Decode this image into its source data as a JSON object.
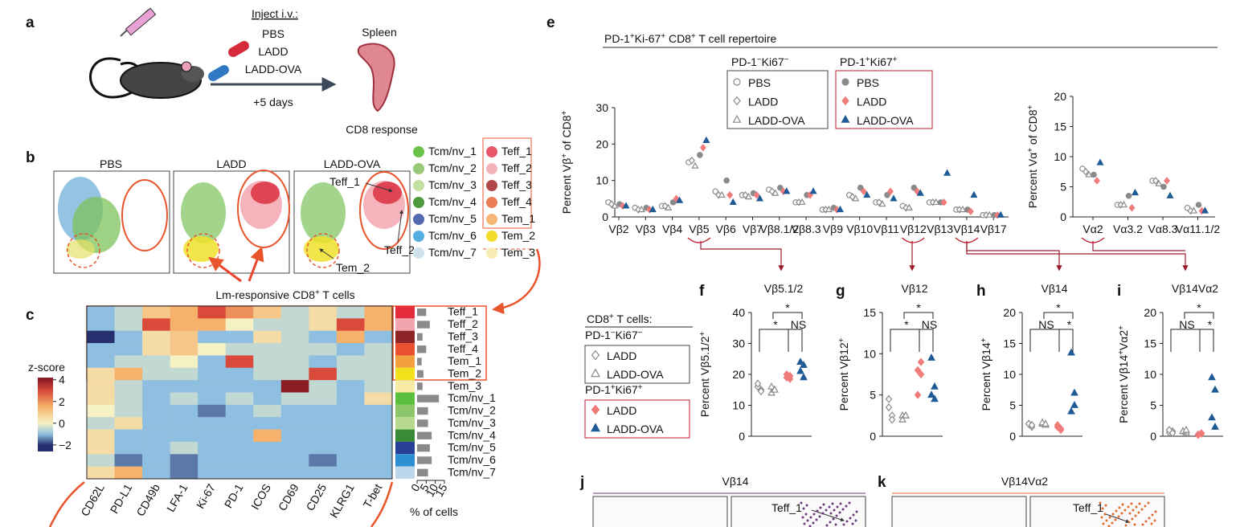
{
  "panel_a": {
    "letter": "a",
    "inject": "Inject i.v.:",
    "groups": [
      "PBS",
      "LADD",
      "LADD-OVA"
    ],
    "group_colors": [
      "#8a8a8a",
      "#d42a3a",
      "#2f78c4"
    ],
    "duration": "+5 days",
    "organ": "Spleen",
    "readout": "CD8 response"
  },
  "panel_b": {
    "letter": "b",
    "titles": [
      "PBS",
      "LADD",
      "LADD-OVA"
    ],
    "annotations": [
      "Teff_1",
      "Teff_2",
      "Tem_2"
    ],
    "legend": [
      {
        "name": "Tcm/nv_1",
        "color": "#6cc24a"
      },
      {
        "name": "Tcm/nv_2",
        "color": "#97c978"
      },
      {
        "name": "Tcm/nv_3",
        "color": "#c3e0a2"
      },
      {
        "name": "Tcm/nv_4",
        "color": "#4f9a3f"
      },
      {
        "name": "Tcm/nv_5",
        "color": "#5569b0"
      },
      {
        "name": "Tcm/nv_6",
        "color": "#56aee0"
      },
      {
        "name": "Tcm/nv_7",
        "color": "#cfe2ee"
      },
      {
        "name": "Teff_1",
        "color": "#e7586a"
      },
      {
        "name": "Teff_2",
        "color": "#f3b3ba"
      },
      {
        "name": "Teff_3",
        "color": "#b0474a"
      },
      {
        "name": "Teff_4",
        "color": "#ec7d57"
      },
      {
        "name": "Tem_1",
        "color": "#f6b676"
      },
      {
        "name": "Tem_2",
        "color": "#f1dc2c"
      },
      {
        "name": "Tem_3",
        "color": "#f7ecb4"
      }
    ],
    "callout": [
      "Lm-responsive CD8",
      "+",
      " T cells"
    ]
  },
  "panel_c": {
    "letter": "c",
    "colorbar_title": "z-score",
    "columns": [
      "CD62L",
      "PD-L1",
      "CD49b",
      "LFA-1",
      "Ki-67",
      "PD-1",
      "ICOS",
      "CD69",
      "CD25",
      "KLRG1",
      "T-bet"
    ],
    "highlight_columns": [
      4,
      5
    ],
    "highlight_color": "#d42a3a",
    "rows": [
      "Teff_1",
      "Teff_2",
      "Teff_3",
      "Teff_4",
      "Tem_1",
      "Tem_2",
      "Tem_3",
      "Tcm/nv_1",
      "Tcm/nv_2",
      "Tcm/nv_3",
      "Tcm/nv_4",
      "Tcm/nv_5",
      "Tcm/nv_6",
      "Tcm/nv_7"
    ],
    "row_colors": [
      "#e32b3c",
      "#f2a5ae",
      "#8f2526",
      "#e8502f",
      "#f4a03e",
      "#f2e21c",
      "#f6eaa5",
      "#5cbf3c",
      "#8cc56a",
      "#b6d98f",
      "#3a8a37",
      "#283f97",
      "#2d8fd2",
      "#bcd7ec"
    ],
    "values": [
      [
        -1,
        -0.5,
        1,
        1.5,
        3,
        2,
        1,
        -0.5,
        0.5,
        -0.5,
        1.5
      ],
      [
        -1,
        -0.5,
        3,
        1.5,
        1.5,
        0,
        -0.5,
        -0.5,
        0.5,
        3,
        1.5
      ],
      [
        -2.5,
        -1,
        0.5,
        1,
        -1,
        -1,
        0.5,
        -0.5,
        -1,
        1.5,
        -1
      ],
      [
        -1,
        -1,
        0.5,
        1,
        0,
        -0.5,
        -0.5,
        -0.5,
        -0.5,
        -1,
        -0.5
      ],
      [
        -1,
        -0.5,
        -0.5,
        0,
        -1,
        3,
        -0.5,
        -0.5,
        -1,
        -0.5,
        -0.5
      ],
      [
        0.5,
        1.5,
        -0.5,
        -0.5,
        -1,
        -1,
        -0.5,
        -0.5,
        3,
        -0.5,
        -0.5
      ],
      [
        0.5,
        -0.5,
        -1,
        -1,
        -1,
        -1,
        -1,
        4,
        -0.5,
        -1,
        -0.5
      ],
      [
        0.5,
        -0.5,
        -1,
        -0.5,
        -1,
        -0.5,
        -1,
        -0.5,
        -0.5,
        -1,
        0.5
      ],
      [
        0,
        -0.5,
        -1,
        -1,
        -1.5,
        -1,
        -0.5,
        -1,
        -1,
        -1,
        -1
      ],
      [
        -0.5,
        0.5,
        -1,
        -1,
        -1,
        -1,
        -1,
        -1,
        -1,
        -1,
        -1
      ],
      [
        0.5,
        -1,
        -1,
        -1,
        -1,
        -1,
        1.5,
        -1,
        -1,
        -1,
        -1
      ],
      [
        0.5,
        -1,
        -1,
        -0.5,
        -1,
        -1,
        -1,
        -1,
        -1,
        -1,
        -1
      ],
      [
        -0.5,
        -1.5,
        -1,
        -1.5,
        -1,
        -1,
        -1,
        -1,
        -1.5,
        -1,
        -1
      ],
      [
        0.5,
        1.5,
        -1,
        -1.5,
        -1,
        -1,
        -1,
        -1,
        -1,
        -1,
        -1
      ]
    ],
    "colormap": [
      [
        -2,
        "#27306f"
      ],
      [
        -1,
        "#8fbfe0"
      ],
      [
        0,
        "#f5f1c4"
      ],
      [
        1.5,
        "#f6b26b"
      ],
      [
        3,
        "#d94a3a"
      ],
      [
        4,
        "#8c1d24"
      ]
    ],
    "zlim": [
      -2.6,
      4.2
    ],
    "zticks": [
      4,
      2,
      0,
      {
        "value": -2,
        "label": "−2"
      }
    ],
    "percent": [
      5,
      7,
      3,
      5,
      2.5,
      3.5,
      3,
      12,
      6,
      6,
      8,
      7,
      8,
      6
    ],
    "percent_xlim": [
      0,
      15
    ],
    "percent_xticks": [
      0,
      5,
      10,
      15
    ],
    "percent_label": "% of cells",
    "bar_color": "#8a8a8a"
  },
  "panel_e": {
    "letter": "e",
    "title": [
      "PD-1",
      "+",
      "Ki-67",
      "+",
      " CD8",
      "+",
      " T cell repertoire"
    ],
    "ylabel": [
      "Percent Vβ",
      "+",
      " of CD8",
      "+"
    ],
    "ylim": [
      0,
      30
    ],
    "yticks": [
      0,
      10,
      20,
      30
    ],
    "categories": [
      "Vβ2",
      "Vβ3",
      "Vβ4",
      "Vβ5",
      "Vβ6",
      "Vβ7",
      "Vβ8.1/2",
      "Vβ8.3",
      "Vβ9",
      "Vβ10",
      "Vβ11",
      "Vβ12",
      "Vβ13",
      "Vβ14",
      "Vβ17"
    ],
    "highlight": [
      3,
      11,
      13
    ],
    "va_ylabel": [
      "Percent Vα",
      "+",
      " of CD8",
      "+"
    ],
    "va_ylim": [
      0,
      20
    ],
    "va_yticks": [
      0,
      5,
      10,
      15,
      20
    ],
    "va_categories": [
      "Vα2",
      "Vα3.2",
      "Vα8.3",
      "Vα11.1/2"
    ],
    "va_highlight": [
      0
    ],
    "legend_titles": [
      [
        "PD-1",
        "−",
        "Ki67",
        "−"
      ],
      [
        "PD-1",
        "+",
        "Ki67",
        "+"
      ]
    ],
    "series": [
      {
        "name": "PBS",
        "group": 0,
        "marker": "circle",
        "color": "#8a8a8a",
        "filled": false,
        "values": [
          4,
          2.5,
          3,
          15,
          7,
          6,
          7.5,
          4,
          2,
          6,
          4,
          3,
          4,
          2,
          0.5
        ],
        "va_values": [
          8,
          2,
          6,
          1.5
        ]
      },
      {
        "name": "LADD",
        "group": 0,
        "marker": "diamond",
        "color": "#8a8a8a",
        "filled": false,
        "values": [
          3.5,
          2,
          3,
          15.5,
          6,
          6,
          7,
          4,
          2,
          5.5,
          4,
          2.5,
          4,
          2,
          0.5
        ],
        "va_values": [
          7.5,
          2,
          6,
          1
        ]
      },
      {
        "name": "LADD-OVA",
        "group": 0,
        "marker": "triangle",
        "color": "#8a8a8a",
        "filled": false,
        "values": [
          3,
          2,
          2.5,
          14,
          6,
          5.5,
          6.5,
          4,
          2,
          5,
          3.5,
          2.5,
          4,
          2,
          0.5
        ],
        "va_values": [
          7,
          2,
          5.5,
          1
        ]
      },
      {
        "name": "PBS",
        "group": 1,
        "marker": "circle",
        "color": "#8a8a8a",
        "filled": true,
        "values": [
          3.5,
          2.5,
          4,
          17,
          10,
          6.5,
          8,
          6,
          2.5,
          8,
          6,
          8,
          4,
          2,
          0.5
        ],
        "va_values": [
          7,
          3.5,
          5,
          2
        ]
      },
      {
        "name": "LADD",
        "group": 1,
        "marker": "diamond",
        "color": "#f07b7b",
        "filled": true,
        "values": [
          3,
          2,
          5,
          19,
          6,
          6,
          7,
          6,
          2,
          7,
          7,
          7,
          4,
          1.5,
          0.5
        ],
        "va_values": [
          6,
          1.5,
          6,
          1
        ]
      },
      {
        "name": "LADD-OVA",
        "group": 1,
        "marker": "triangle",
        "color": "#1f5a96",
        "filled": true,
        "values": [
          3,
          2,
          4.5,
          21,
          4,
          5,
          7,
          7,
          2,
          6,
          5,
          6.5,
          12,
          6,
          0.5
        ],
        "va_values": [
          9,
          4,
          3.5,
          1
        ]
      }
    ]
  },
  "legend_fi": {
    "title": [
      "CD8",
      "+",
      " T cells:"
    ],
    "groups": [
      {
        "title": [
          "PD-1",
          "−",
          "Ki67",
          "−"
        ],
        "items": [
          {
            "name": "LADD",
            "marker": "diamond",
            "color": "#8a8a8a",
            "filled": false
          },
          {
            "name": "LADD-OVA",
            "marker": "triangle",
            "color": "#8a8a8a",
            "filled": false
          }
        ]
      },
      {
        "title": [
          "PD-1",
          "+",
          "Ki67",
          "+"
        ],
        "items": [
          {
            "name": "LADD",
            "marker": "diamond",
            "color": "#f07b7b",
            "filled": true
          },
          {
            "name": "LADD-OVA",
            "marker": "triangle",
            "color": "#1f5a96",
            "filled": true
          }
        ]
      }
    ]
  },
  "panels_fi": [
    {
      "letter": "f",
      "title": "Vβ5.1/2",
      "ylabel": [
        "Percent Vβ5.1/2",
        "+"
      ],
      "ylim": [
        0,
        40
      ],
      "yticks": [
        0,
        10,
        20,
        30,
        40
      ],
      "significance": [
        "*",
        "*",
        "NS"
      ],
      "values": [
        [
          16,
          15,
          17,
          14.5
        ],
        [
          14,
          15,
          16,
          15
        ],
        [
          19,
          19.5,
          20,
          18.5
        ],
        [
          21,
          19,
          24,
          23
        ]
      ]
    },
    {
      "letter": "g",
      "title": "Vβ12",
      "ylabel": [
        "Percent Vβ12",
        "+"
      ],
      "ylim": [
        0,
        15
      ],
      "yticks": [
        0,
        5,
        10,
        15
      ],
      "significance": [
        "*",
        "*",
        "NS"
      ],
      "values": [
        [
          3.5,
          2.5,
          4.5,
          2
        ],
        [
          2.5,
          2.5,
          2,
          2.5
        ],
        [
          8,
          9,
          5,
          7.5
        ],
        [
          9.5,
          6,
          5,
          4.5
        ]
      ]
    },
    {
      "letter": "h",
      "title": "Vβ14",
      "ylabel": [
        "Percent Vβ14",
        "+"
      ],
      "ylim": [
        0,
        20
      ],
      "yticks": [
        0,
        5,
        10,
        15,
        20
      ],
      "significance": [
        "*",
        "NS",
        "*"
      ],
      "values": [
        [
          2,
          1.5,
          2,
          1.8
        ],
        [
          2,
          1.8,
          2.2,
          2
        ],
        [
          1.5,
          1,
          1.8,
          1.2
        ],
        [
          13.5,
          5,
          4,
          7
        ]
      ]
    },
    {
      "letter": "i",
      "title": "Vβ14Vα2",
      "ylabel": [
        "Percent Vβ14",
        "+",
        "Vα2",
        "+"
      ],
      "ylim": [
        0,
        20
      ],
      "yticks": [
        0,
        5,
        10,
        15,
        20
      ],
      "significance": [
        "*",
        "NS",
        "*"
      ],
      "values": [
        [
          0.6,
          0.8,
          1,
          0.5
        ],
        [
          0.8,
          0.6,
          0.8,
          1
        ],
        [
          0.3,
          0.5,
          0.2,
          0.4
        ],
        [
          9.5,
          7.5,
          3,
          1.5
        ]
      ]
    }
  ],
  "panel_j": {
    "letter": "j",
    "title": "Vβ14",
    "color": "#6b3a7a",
    "annotation": "Teff_1"
  },
  "panel_k": {
    "letter": "k",
    "title": "Vβ14Vα2",
    "color": "#e06a30",
    "annotation": "Teff_1"
  }
}
